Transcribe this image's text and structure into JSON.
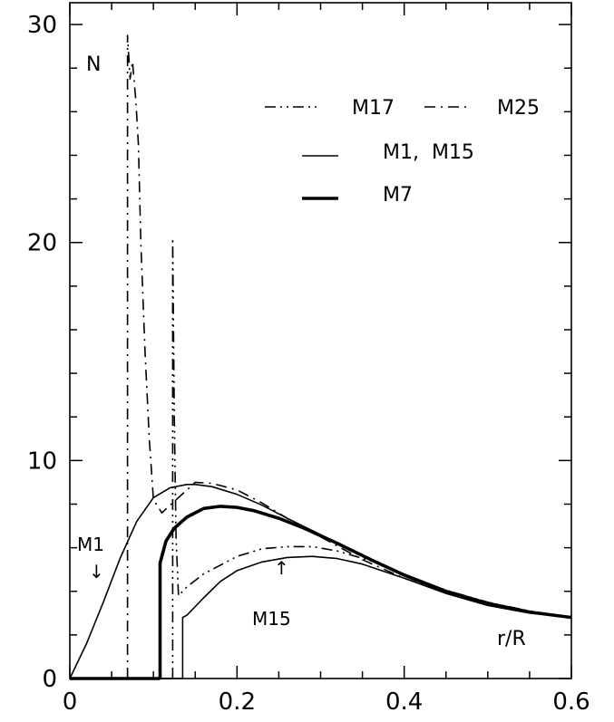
{
  "chart_data": {
    "type": "line",
    "title": "",
    "xlabel": "r/R",
    "ylabel": "N",
    "xlim": [
      0,
      0.6
    ],
    "ylim": [
      0,
      31
    ],
    "x_ticks": [
      {
        "value": 0,
        "label": "0"
      },
      {
        "value": 0.2,
        "label": "0.2"
      },
      {
        "value": 0.4,
        "label": "0.4"
      },
      {
        "value": 0.6,
        "label": "0.6"
      }
    ],
    "y_ticks": [
      {
        "value": 0,
        "label": "0"
      },
      {
        "value": 10,
        "label": "10"
      },
      {
        "value": 20,
        "label": "20"
      },
      {
        "value": 30,
        "label": "30"
      }
    ],
    "grid": false,
    "legend_position": "top-right",
    "legend": [
      {
        "label": "M17",
        "style": "dash-dot-dot"
      },
      {
        "label": "M25",
        "style": "dash-dot"
      },
      {
        "label": "M1,  M15",
        "style": "solid-thin"
      },
      {
        "label": "M7",
        "style": "solid-thick"
      }
    ],
    "annotations": [
      {
        "text": "M1",
        "arrow": "↓",
        "x": 0.03,
        "y": 5.0
      },
      {
        "text": "M15",
        "arrow": "↑",
        "x": 0.25,
        "y": 5.2
      }
    ],
    "series": [
      {
        "name": "M1",
        "style": "solid-thin",
        "x": [
          0,
          0.02,
          0.04,
          0.06,
          0.08,
          0.1,
          0.12,
          0.14,
          0.15,
          0.17,
          0.2,
          0.23,
          0.26,
          0.3,
          0.35,
          0.4,
          0.45,
          0.5,
          0.55,
          0.6
        ],
        "y": [
          0,
          1.6,
          3.5,
          5.5,
          7.2,
          8.3,
          8.75,
          8.9,
          8.9,
          8.8,
          8.45,
          7.95,
          7.35,
          6.6,
          5.6,
          4.7,
          3.95,
          3.45,
          3.05,
          2.8
        ]
      },
      {
        "name": "M7",
        "style": "solid-thick",
        "x": [
          0.108,
          0.108,
          0.115,
          0.125,
          0.14,
          0.16,
          0.18,
          0.2,
          0.22,
          0.25,
          0.28,
          0.32,
          0.36,
          0.4,
          0.45,
          0.5,
          0.55,
          0.6
        ],
        "y": [
          0,
          5.3,
          6.3,
          6.9,
          7.4,
          7.8,
          7.9,
          7.85,
          7.7,
          7.35,
          6.9,
          6.2,
          5.45,
          4.75,
          4.0,
          3.45,
          3.05,
          2.8
        ]
      },
      {
        "name": "M15",
        "style": "solid-thin",
        "x": [
          0.135,
          0.135,
          0.14,
          0.16,
          0.18,
          0.2,
          0.23,
          0.26,
          0.29,
          0.32,
          0.35,
          0.4,
          0.45,
          0.5,
          0.55,
          0.6
        ],
        "y": [
          0,
          2.8,
          2.9,
          3.7,
          4.45,
          4.95,
          5.35,
          5.55,
          5.6,
          5.5,
          5.25,
          4.6,
          3.9,
          3.35,
          3.0,
          2.8
        ]
      },
      {
        "name": "M17",
        "style": "dash-dot-dot",
        "x": [
          0.123,
          0.123,
          0.125,
          0.127,
          0.13,
          0.14,
          0.16,
          0.18,
          0.2,
          0.23,
          0.26,
          0.29,
          0.32,
          0.36,
          0.4,
          0.45,
          0.5,
          0.55,
          0.6
        ],
        "y": [
          0,
          20.2,
          12.0,
          6.5,
          3.8,
          4.2,
          4.8,
          5.2,
          5.6,
          5.95,
          6.05,
          6.05,
          5.85,
          5.4,
          4.75,
          4.05,
          3.5,
          3.1,
          2.8
        ]
      },
      {
        "name": "M25",
        "style": "dash-dot",
        "x": [
          0.069,
          0.069,
          0.072,
          0.075,
          0.079,
          0.082,
          0.085,
          0.09,
          0.095,
          0.1,
          0.11,
          0.13,
          0.15,
          0.17,
          0.2,
          0.23,
          0.26,
          0.3,
          0.35,
          0.4,
          0.45,
          0.5,
          0.55,
          0.6
        ],
        "y": [
          0,
          29.5,
          27.5,
          28.3,
          26.5,
          24.5,
          20.0,
          15.0,
          11.0,
          8.2,
          7.6,
          8.3,
          9.0,
          8.95,
          8.65,
          8.05,
          7.35,
          6.5,
          5.45,
          4.6,
          3.95,
          3.45,
          3.05,
          2.8
        ]
      }
    ]
  }
}
